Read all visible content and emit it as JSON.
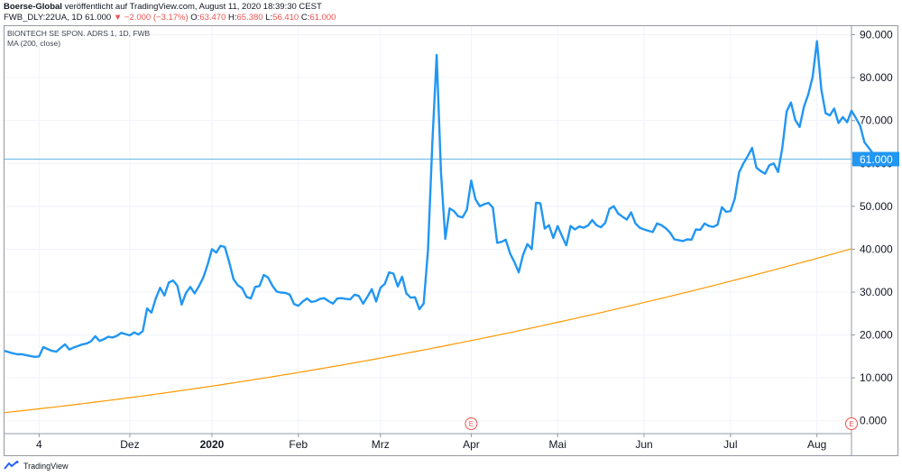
{
  "header": {
    "line1_bold": "Boerse-Global",
    "line1_rest": " veröffentlicht auf TradingView.com, August 11, 2020 18:39:30 CEST",
    "symbol": "FWB_DLY:22UA, 1D",
    "last": "61.000",
    "arrow": "▼",
    "change": "−2.000 (−3.17%)",
    "o_label": "O:",
    "o": "63.470",
    "h_label": "H:",
    "h": "65.380",
    "l_label": "L:",
    "l": "56.410",
    "c_label": "C:",
    "c": "61.000"
  },
  "legend": {
    "title": "BIONTECH SE SPON. ADRS 1, 1D, FWB",
    "ma": "MA (200, close)"
  },
  "footer": {
    "brand": "TradingView"
  },
  "colors": {
    "price": "#2196f3",
    "ma": "#ff9800",
    "last_line": "#67b8e6",
    "label_bg": "#2196f3",
    "event": "#ef5350"
  },
  "chart_data": {
    "type": "line",
    "ylim": [
      -3,
      92
    ],
    "yticks": [
      "0.000",
      "10.000",
      "20.000",
      "30.000",
      "40.000",
      "50.000",
      "60.000",
      "70.000",
      "80.000",
      "90.000"
    ],
    "ytick_values": [
      0,
      10,
      20,
      30,
      40,
      50,
      60,
      70,
      80,
      90
    ],
    "last_price_label": "61.000",
    "last_price": 61,
    "x_labels": [
      "4",
      "Dez",
      "2020",
      "Feb",
      "Mrz",
      "Apr",
      "Mai",
      "Jun",
      "Jul",
      "Aug"
    ],
    "x_label_index": [
      8,
      29,
      48,
      68,
      87,
      108,
      128,
      148,
      168,
      188
    ],
    "event_label": "E",
    "event_index": [
      108,
      196
    ],
    "n_points": 197,
    "series": [
      {
        "values": [
          16.3,
          16,
          15.7,
          15.5,
          15.5,
          15.3,
          15.1,
          14.9,
          15,
          17.2,
          16.7,
          16.3,
          16.1,
          17,
          17.8,
          16.6,
          17.1,
          17.4,
          17.8,
          18,
          18.5,
          19.7,
          18.6,
          19,
          19.6,
          19.4,
          19.8,
          20.5,
          20.2,
          19.9,
          20.6,
          20.1,
          20.9,
          26.2,
          25.2,
          28.5,
          31,
          29.2,
          32.2,
          32.7,
          31.5,
          27.1,
          29.8,
          31.2,
          29.7,
          31.4,
          33.4,
          36.4,
          40,
          39.2,
          40.8,
          40.5,
          37,
          33,
          31.6,
          30.9,
          28.9,
          28.5,
          31.2,
          31.4,
          34,
          33.4,
          31.5,
          30.1,
          29.9,
          29.8,
          29.4,
          27.2,
          26.8,
          27.8,
          28.5,
          27.7,
          27.9,
          28.4,
          28.6,
          27.9,
          27.3,
          28.5,
          28.6,
          28.4,
          28.3,
          29.4,
          29.1,
          27.3,
          28.9,
          30.7,
          27.8,
          31,
          31.9,
          34.6,
          34.3,
          31.3,
          33.6,
          29.7,
          28.7,
          28.8,
          26,
          27.3,
          39.8,
          64.7,
          85.3,
          57.9,
          42.4,
          49.5,
          48.9,
          47.7,
          47.4,
          49.2,
          56,
          51.6,
          50,
          50.5,
          50.8,
          49.7,
          41.5,
          41.7,
          42.2,
          39,
          37,
          34.6,
          38.7,
          41.2,
          40,
          50.8,
          50.7,
          44.8,
          45.6,
          42.6,
          45.4,
          43.1,
          40.9,
          45.4,
          44.6,
          45.3,
          45,
          45.5,
          46.8,
          45.6,
          45.1,
          46.1,
          49.4,
          50,
          48.3,
          47.6,
          46.9,
          48.6,
          46,
          45,
          44.6,
          44.3,
          44,
          46,
          45.6,
          44.9,
          43.9,
          42.3,
          42.1,
          41.9,
          42.3,
          42.2,
          44.6,
          44.5,
          46,
          45.4,
          45.2,
          45.7,
          49.8,
          48.7,
          48.9,
          51.8,
          57.9,
          60,
          61.7,
          63.6,
          59,
          58.2,
          57.6,
          59.6,
          60,
          58,
          63.6,
          72.1,
          74.2,
          70.1,
          68.5,
          73.2,
          76.1,
          80.1,
          88.5,
          77.3,
          71.7,
          71.2,
          72.8,
          69.4,
          70.8,
          69.6,
          72.3,
          70.6,
          68.8,
          64.9,
          63.6,
          62.3,
          61
        ]
      },
      {
        "values_start": 1.9,
        "values_end": 40.1
      }
    ]
  }
}
